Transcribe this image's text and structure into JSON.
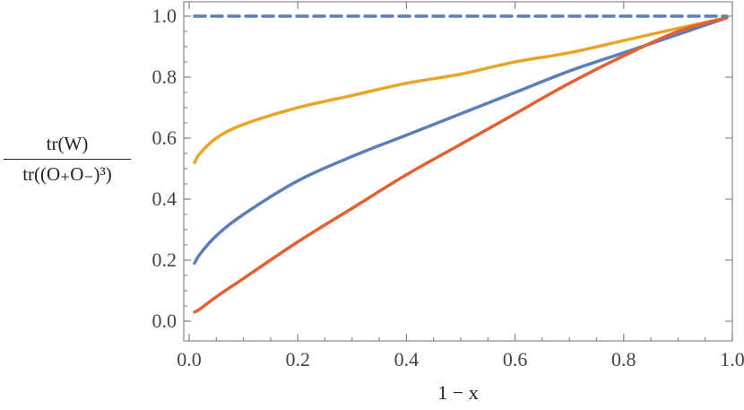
{
  "chart_data": {
    "type": "line",
    "xlabel": "1 − x",
    "ylabel_numerator": "tr(W)",
    "ylabel_denominator": "tr((O₊O₋)³)",
    "xlim": [
      0.0,
      1.0
    ],
    "ylim": [
      0.0,
      1.0
    ],
    "xticks": [
      "0.0",
      "0.2",
      "0.4",
      "0.6",
      "0.8",
      "1.0"
    ],
    "yticks": [
      "0.0",
      "0.2",
      "0.4",
      "0.6",
      "0.8",
      "1.0"
    ],
    "grid": false,
    "series": [
      {
        "color": "#E8A52A",
        "style": "solid",
        "x": [
          0.01,
          0.02,
          0.05,
          0.1,
          0.2,
          0.3,
          0.4,
          0.5,
          0.6,
          0.7,
          0.8,
          0.9,
          0.99
        ],
        "y": [
          0.52,
          0.55,
          0.6,
          0.645,
          0.7,
          0.74,
          0.78,
          0.81,
          0.85,
          0.88,
          0.92,
          0.96,
          0.995
        ]
      },
      {
        "color": "#5B7FB5",
        "style": "solid",
        "x": [
          0.01,
          0.02,
          0.05,
          0.1,
          0.2,
          0.3,
          0.4,
          0.5,
          0.6,
          0.7,
          0.8,
          0.9,
          0.99
        ],
        "y": [
          0.19,
          0.22,
          0.28,
          0.35,
          0.46,
          0.54,
          0.61,
          0.68,
          0.75,
          0.82,
          0.88,
          0.94,
          0.995
        ]
      },
      {
        "color": "#E06133",
        "style": "solid",
        "x": [
          0.01,
          0.02,
          0.05,
          0.1,
          0.2,
          0.3,
          0.4,
          0.5,
          0.6,
          0.7,
          0.8,
          0.9,
          0.99
        ],
        "y": [
          0.03,
          0.04,
          0.08,
          0.14,
          0.26,
          0.37,
          0.48,
          0.58,
          0.68,
          0.78,
          0.87,
          0.95,
          0.995
        ]
      },
      {
        "color": "#5B7FB5",
        "style": "dashed",
        "x": [
          0.01,
          0.99
        ],
        "y": [
          1.0,
          1.0
        ]
      }
    ]
  }
}
